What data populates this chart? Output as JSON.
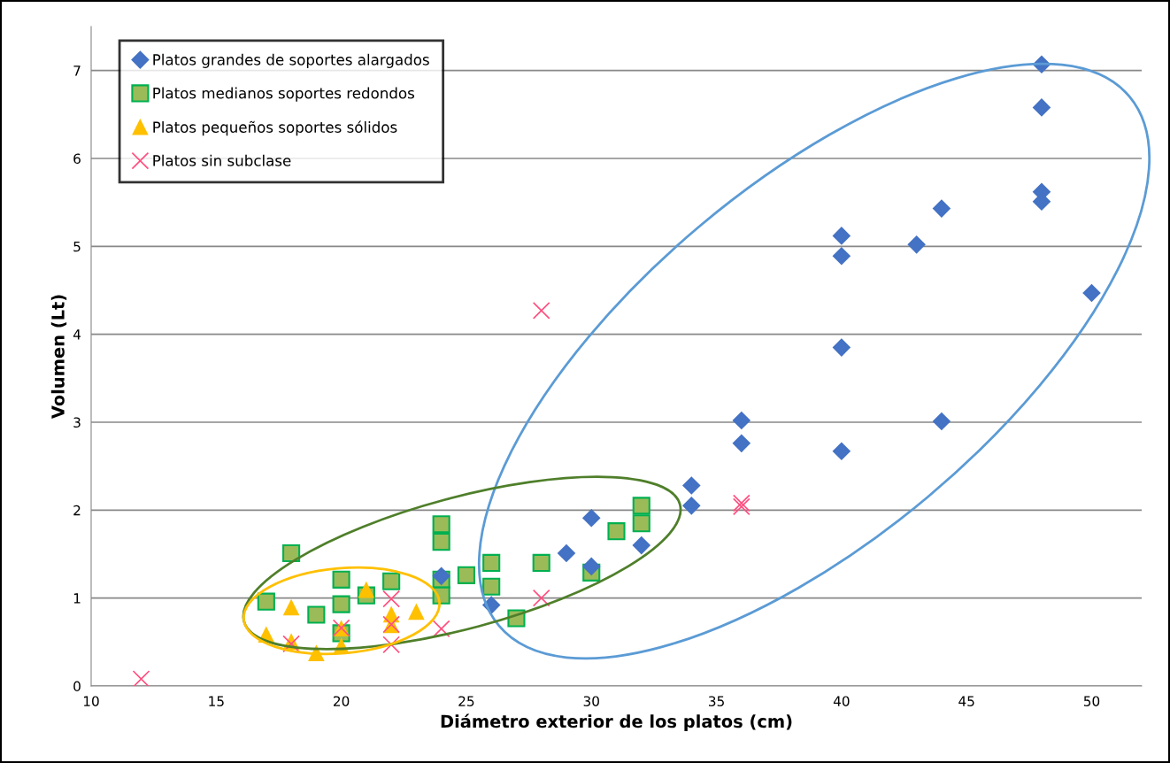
{
  "chart_data": {
    "type": "scatter",
    "xlabel": "Diámetro exterior de los platos (cm)",
    "ylabel": "Volumen (Lt)",
    "xlim": [
      10,
      52
    ],
    "ylim": [
      0,
      7.5
    ],
    "xticks": [
      10,
      15,
      20,
      25,
      30,
      35,
      40,
      45,
      50
    ],
    "yticks": [
      0,
      1,
      2,
      3,
      4,
      5,
      6,
      7
    ],
    "grid": "y",
    "legend": "top left",
    "series": [
      {
        "name": "Platos grandes de soportes alargados",
        "color": "#4472c4",
        "marker": "diamond",
        "x": [
          24,
          26,
          29,
          30,
          30,
          32,
          34,
          34,
          36,
          36,
          40,
          40,
          40,
          40,
          43,
          44,
          44,
          48,
          48,
          48,
          48,
          50
        ],
        "values": [
          1.25,
          0.92,
          1.51,
          1.91,
          1.36,
          1.6,
          2.28,
          2.05,
          3.02,
          2.76,
          5.12,
          4.89,
          3.85,
          2.67,
          5.02,
          5.43,
          3.01,
          7.07,
          6.58,
          5.62,
          5.51,
          4.47
        ]
      },
      {
        "name": "Platos medianos soportes redondos",
        "color": "#9bbb59",
        "marker": "square",
        "x": [
          17,
          18,
          19,
          20,
          20,
          20,
          21,
          22,
          24,
          24,
          24,
          24,
          25,
          26,
          26,
          27,
          28,
          30,
          31,
          32,
          32
        ],
        "values": [
          0.96,
          1.51,
          0.81,
          1.21,
          0.93,
          0.6,
          1.03,
          1.19,
          1.84,
          1.64,
          1.21,
          1.03,
          1.26,
          1.4,
          1.13,
          0.77,
          1.4,
          1.29,
          1.76,
          2.05,
          1.85
        ]
      },
      {
        "name": "Platos pequeños soportes sólidos",
        "color": "#ffc000",
        "marker": "triangle",
        "x": [
          17,
          18,
          18,
          19,
          20,
          20,
          21,
          22,
          22,
          23
        ],
        "values": [
          0.58,
          0.89,
          0.5,
          0.37,
          0.65,
          0.45,
          1.09,
          0.81,
          0.69,
          0.84
        ]
      },
      {
        "name": "Platos sin subclase",
        "color": "#ff5080",
        "marker": "cross",
        "x": [
          12,
          18,
          20,
          22,
          22,
          22,
          24,
          28,
          28,
          36,
          36
        ],
        "values": [
          0.08,
          0.48,
          0.66,
          0.99,
          0.7,
          0.47,
          0.65,
          1.0,
          4.27,
          2.04,
          2.08
        ]
      }
    ]
  }
}
